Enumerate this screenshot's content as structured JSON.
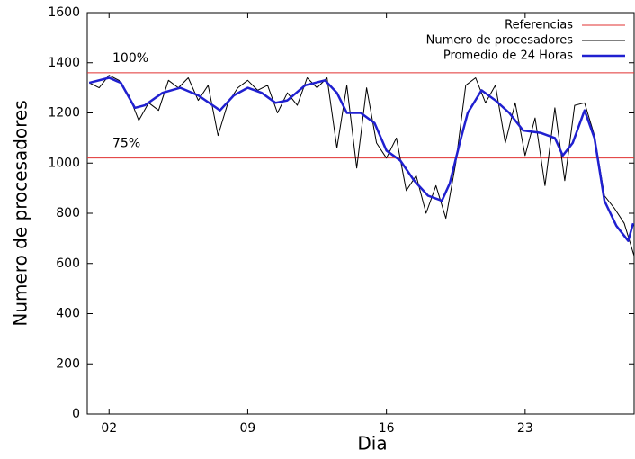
{
  "chart_data": {
    "type": "line",
    "xlabel": "Dia",
    "ylabel": "Numero de procesadores",
    "xlim": [
      0.9,
      28.5
    ],
    "ylim": [
      0,
      1600
    ],
    "xticks": [
      {
        "value": 2,
        "label": "02"
      },
      {
        "value": 9,
        "label": "09"
      },
      {
        "value": 16,
        "label": "16"
      },
      {
        "value": 23,
        "label": "23"
      }
    ],
    "yticks": [
      0,
      200,
      400,
      600,
      800,
      1000,
      1200,
      1400,
      1600
    ],
    "grid": false,
    "legend": "upper right",
    "references": {
      "name": "Referencias",
      "color": "#e03030",
      "lines": [
        {
          "value": 1360,
          "label": "100%"
        },
        {
          "value": 1020,
          "label": "75%"
        }
      ]
    },
    "series": [
      {
        "name": "Numero de procesadores",
        "color": "#000000",
        "width": 1,
        "x": [
          1,
          1.5,
          2,
          2.5,
          3,
          3.5,
          4,
          4.5,
          5,
          5.5,
          6,
          6.5,
          7,
          7.5,
          8,
          8.5,
          9,
          9.5,
          10,
          10.5,
          11,
          11.5,
          12,
          12.5,
          13,
          13.5,
          14,
          14.5,
          15,
          15.5,
          16,
          16.5,
          17,
          17.5,
          18,
          18.5,
          19,
          19.5,
          20,
          20.5,
          21,
          21.5,
          22,
          22.5,
          23,
          23.5,
          24,
          24.5,
          25,
          25.5,
          26,
          26.5,
          27,
          27.5,
          28,
          28.5
        ],
        "values": [
          1320,
          1300,
          1350,
          1330,
          1270,
          1170,
          1240,
          1210,
          1330,
          1300,
          1340,
          1250,
          1310,
          1110,
          1240,
          1300,
          1330,
          1290,
          1310,
          1200,
          1280,
          1230,
          1340,
          1300,
          1340,
          1060,
          1310,
          980,
          1300,
          1080,
          1020,
          1100,
          890,
          950,
          800,
          910,
          780,
          1000,
          1310,
          1340,
          1240,
          1310,
          1080,
          1240,
          1030,
          1180,
          910,
          1220,
          930,
          1230,
          1240,
          1110,
          870,
          820,
          760,
          630
        ]
      },
      {
        "name": "Promedio de 24 Horas",
        "color": "#2020d0",
        "width": 2.5,
        "x": [
          1,
          2,
          2.6,
          3.3,
          3.8,
          4.7,
          5.6,
          6.5,
          7.6,
          8.3,
          9,
          9.7,
          10.4,
          11,
          11.9,
          12.9,
          13.5,
          14,
          14.7,
          15.4,
          16,
          16.7,
          17.4,
          18.1,
          18.8,
          19.2,
          19.7,
          20.1,
          20.8,
          21.5,
          22.2,
          22.9,
          23.8,
          24.5,
          24.9,
          25.4,
          26,
          26.5,
          27,
          27.6,
          28.2,
          28.45
        ],
        "values": [
          1320,
          1340,
          1320,
          1220,
          1230,
          1280,
          1300,
          1270,
          1210,
          1270,
          1300,
          1280,
          1240,
          1250,
          1310,
          1330,
          1280,
          1200,
          1200,
          1160,
          1050,
          1010,
          930,
          870,
          850,
          920,
          1080,
          1200,
          1290,
          1250,
          1200,
          1130,
          1120,
          1100,
          1030,
          1080,
          1210,
          1100,
          850,
          750,
          690,
          760
        ]
      }
    ]
  }
}
